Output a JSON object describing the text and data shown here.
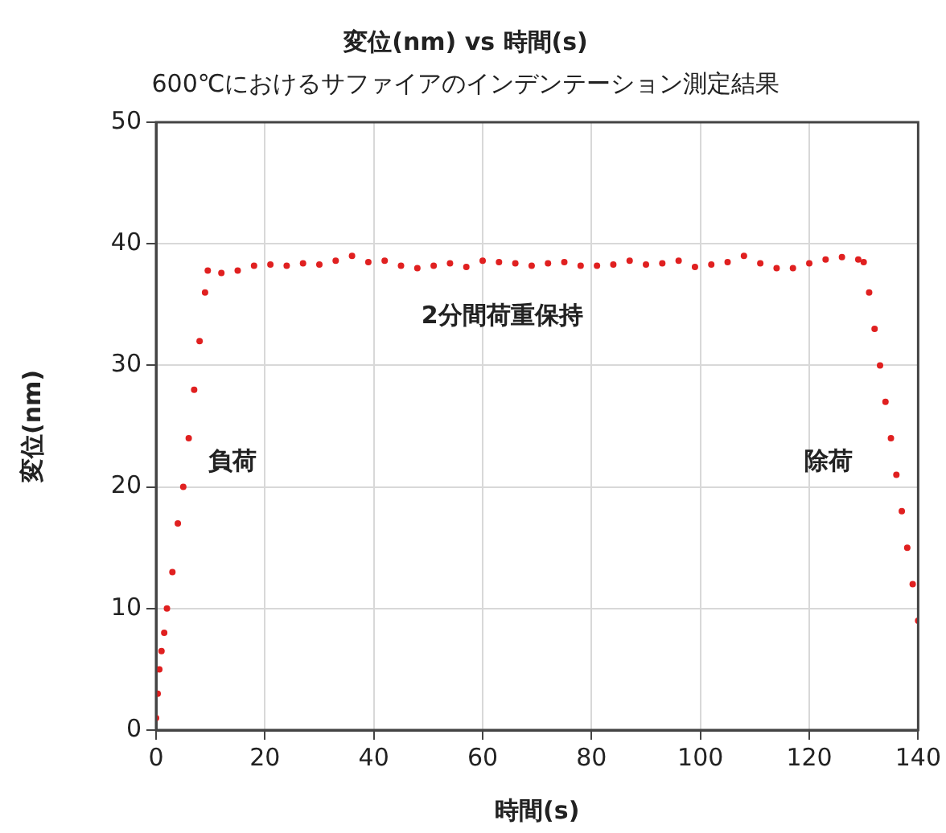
{
  "chart_data": {
    "type": "scatter",
    "title": "変位(nm) vs 時間(s)",
    "subtitle": "600℃におけるサファイアのインデンテーション測定結果",
    "xlabel": "時間(s)",
    "ylabel": "変位(nm)",
    "x": [
      0,
      0.3,
      0.6,
      1,
      1.5,
      2,
      3,
      4,
      5,
      6,
      7,
      8,
      9,
      9.5,
      12,
      15,
      18,
      21,
      24,
      27,
      30,
      33,
      36,
      39,
      42,
      45,
      48,
      51,
      54,
      57,
      60,
      63,
      66,
      69,
      72,
      75,
      78,
      81,
      84,
      87,
      90,
      93,
      96,
      99,
      102,
      105,
      108,
      111,
      114,
      117,
      120,
      123,
      126,
      129,
      130,
      131,
      132,
      133,
      134,
      135,
      136,
      137,
      138,
      139,
      140
    ],
    "series": [
      {
        "color": "#e02020",
        "values": [
          1,
          3,
          5,
          6.5,
          8,
          10,
          13,
          17,
          20,
          24,
          28,
          32,
          36,
          37.8,
          37.6,
          37.8,
          38.2,
          38.3,
          38.2,
          38.4,
          38.3,
          38.6,
          39,
          38.5,
          38.6,
          38.2,
          38,
          38.2,
          38.4,
          38.1,
          38.6,
          38.5,
          38.4,
          38.2,
          38.4,
          38.5,
          38.2,
          38.2,
          38.3,
          38.6,
          38.3,
          38.4,
          38.6,
          38.1,
          38.3,
          38.5,
          39,
          38.4,
          38,
          38,
          38.4,
          38.7,
          38.9,
          38.7,
          38.5,
          36,
          33,
          30,
          27,
          24,
          21,
          18,
          15,
          12,
          9
        ]
      }
    ],
    "xlim": [
      0,
      140
    ],
    "xticks": [
      0,
      20,
      40,
      60,
      80,
      100,
      120,
      140
    ],
    "ylim": [
      0,
      50
    ],
    "yticks": [
      0,
      10,
      20,
      30,
      40,
      50
    ],
    "grid": true,
    "legend": false,
    "marker": "circle",
    "annotations": [
      "負荷",
      "2分間荷重保持",
      "除荷"
    ]
  }
}
